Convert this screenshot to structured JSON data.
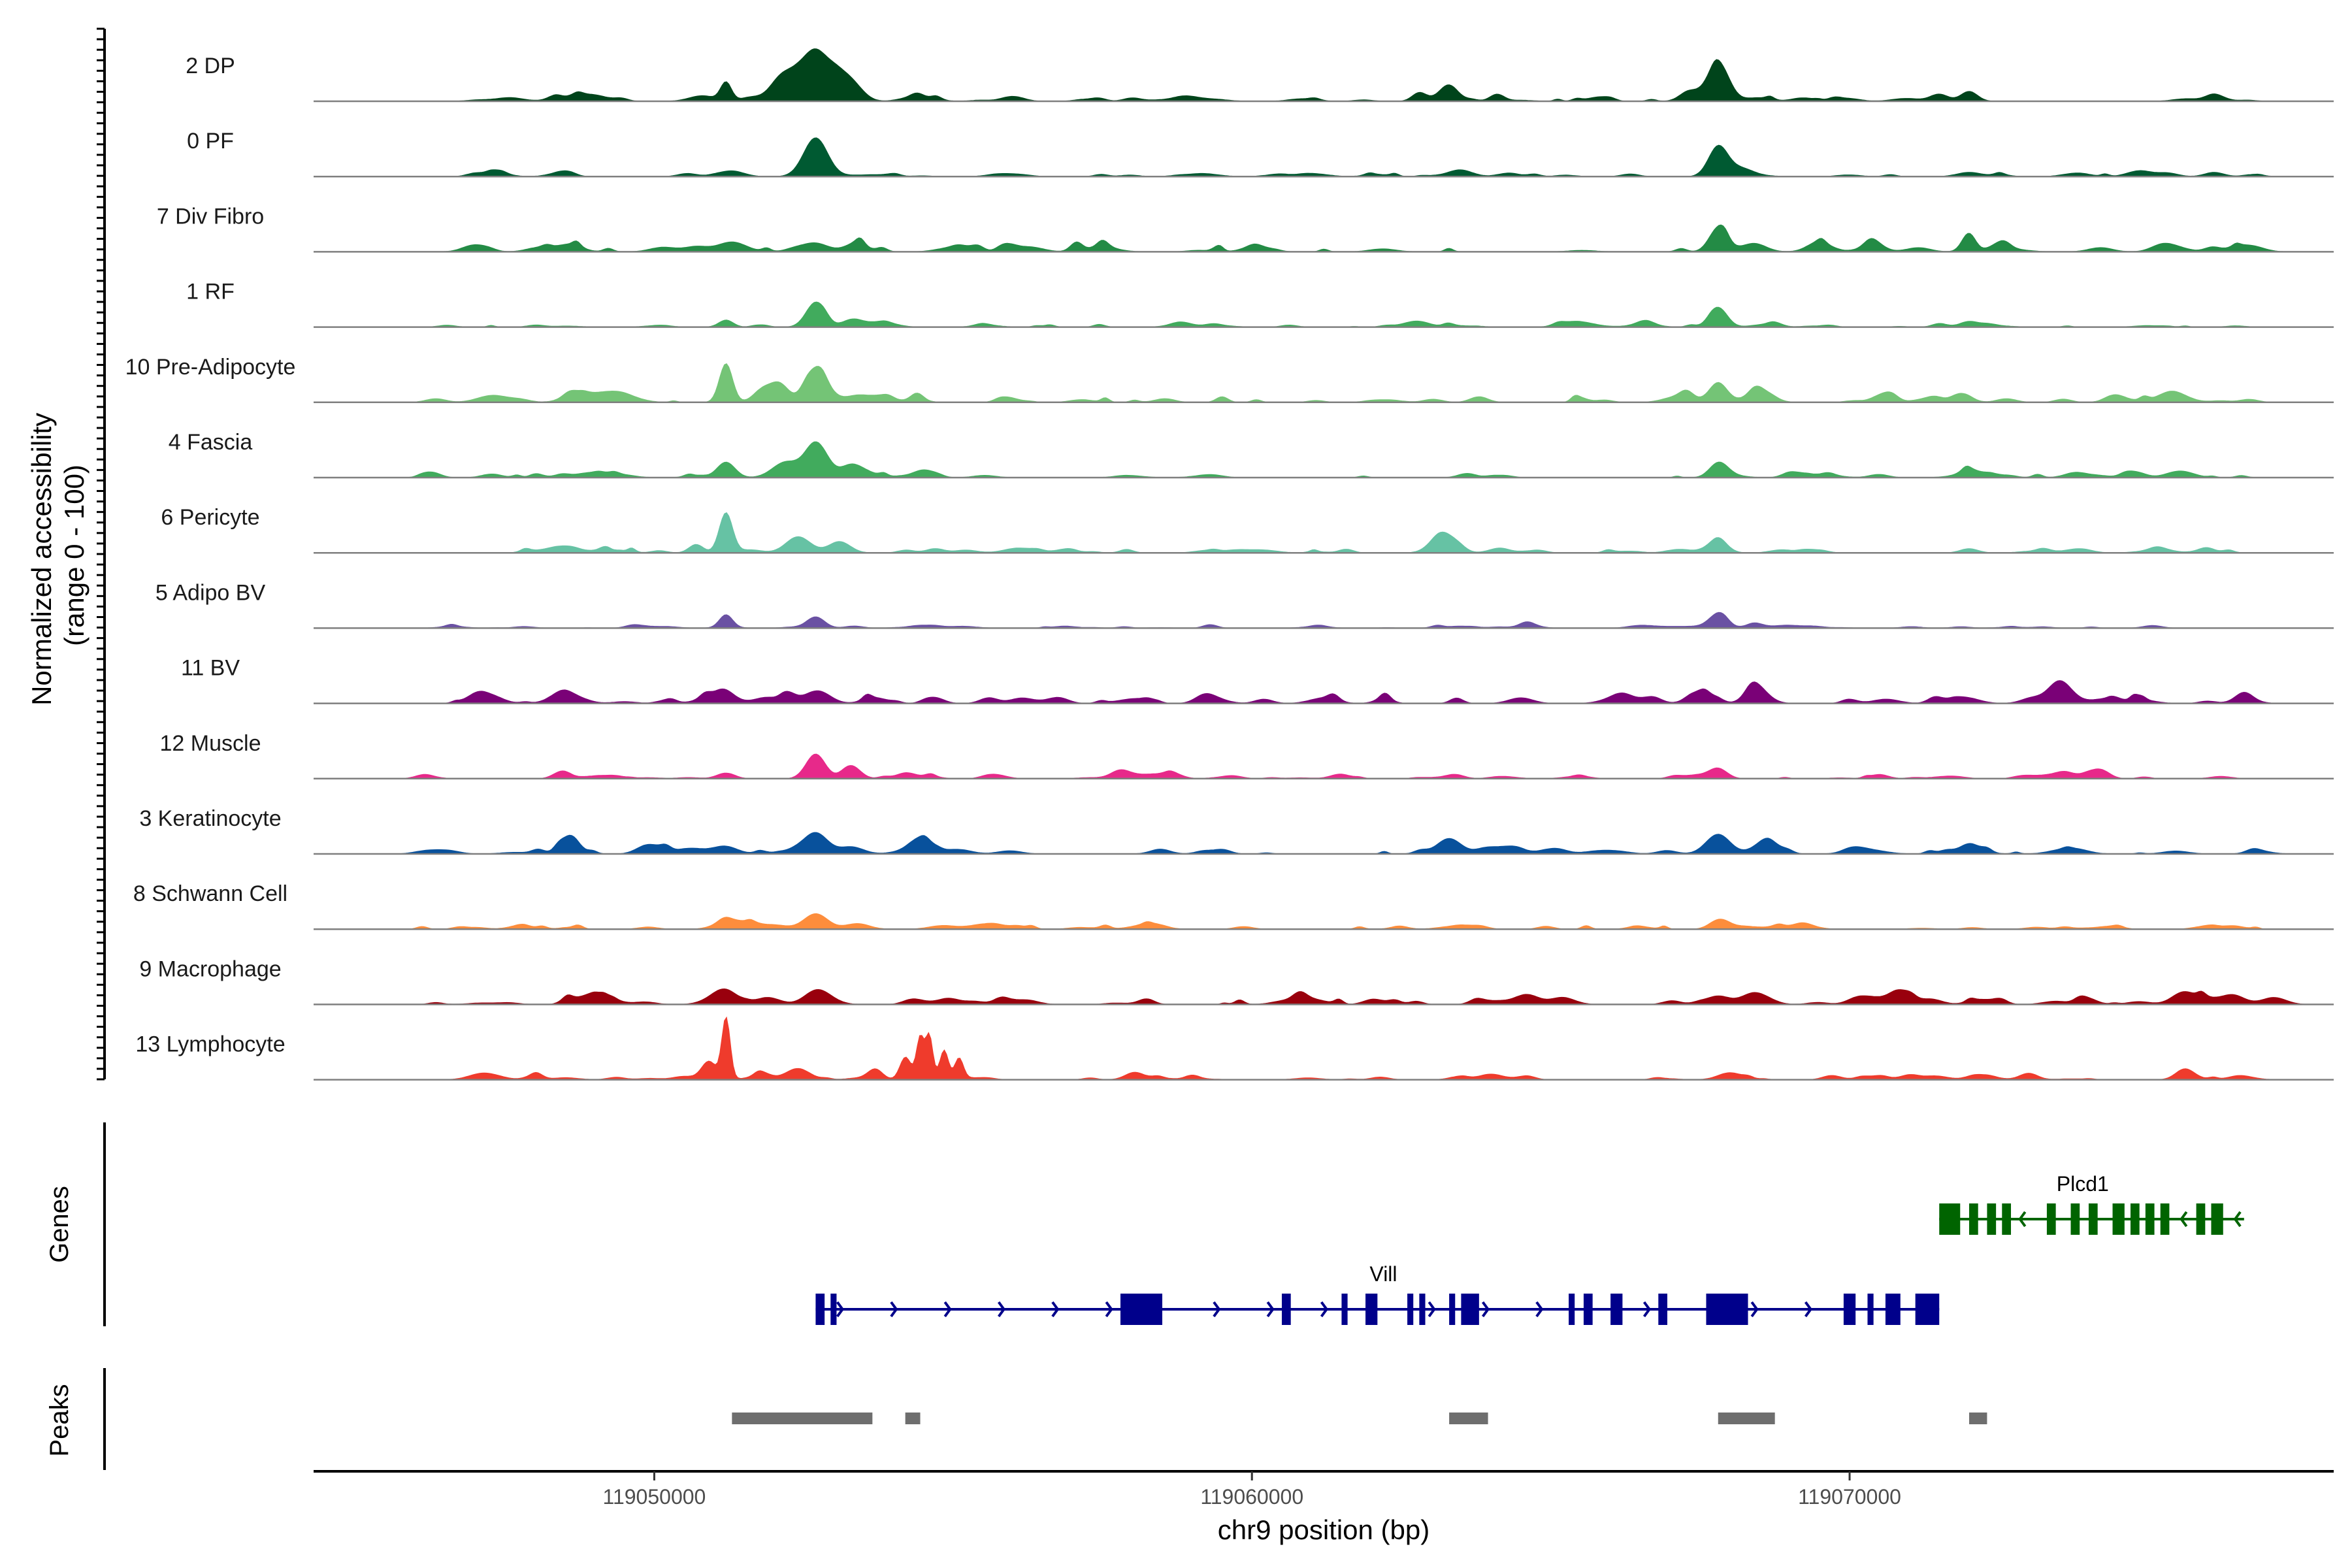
{
  "chart_data": {
    "type": "area",
    "title": "",
    "ylabel_line1": "Normalized accessibility",
    "ylabel_line2": "(range 0 - 100)",
    "xlabel": "chr9 position (bp)",
    "xlim": [
      119044300,
      119078100
    ],
    "xticks": [
      119050000,
      119060000,
      119070000
    ],
    "xtick_labels": [
      "119050000",
      "119060000",
      "119070000"
    ],
    "panels": {
      "genes": "Genes",
      "peaks": "Peaks"
    },
    "tracks": [
      {
        "label": "2 DP",
        "color": "#00441b",
        "peaks": [
          [
            119051200,
            25,
            90
          ],
          [
            119052700,
            70,
            350
          ],
          [
            119052100,
            18,
            200
          ],
          [
            119053300,
            12,
            150
          ],
          [
            119054400,
            10,
            120
          ],
          [
            119062800,
            12,
            120
          ],
          [
            119063300,
            22,
            150
          ],
          [
            119064100,
            10,
            120
          ],
          [
            119067800,
            55,
            180
          ],
          [
            119067300,
            12,
            150
          ],
          [
            119072000,
            14,
            140
          ],
          [
            119071500,
            10,
            150
          ],
          [
            119076100,
            10,
            140
          ]
        ],
        "noise": 4,
        "seed": 11
      },
      {
        "label": "0 PF",
        "color": "#005a32",
        "peaks": [
          [
            119052700,
            55,
            200
          ],
          [
            119051300,
            8,
            200
          ],
          [
            119067800,
            42,
            160
          ],
          [
            119068200,
            10,
            200
          ],
          [
            119063500,
            8,
            200
          ],
          [
            119064300,
            5,
            180
          ],
          [
            119072000,
            6,
            200
          ],
          [
            119076100,
            6,
            160
          ]
        ],
        "noise": 3,
        "seed": 23
      },
      {
        "label": "7 Div Fibro",
        "color": "#238b45",
        "peaks": [
          [
            119047000,
            10,
            200
          ],
          [
            119048600,
            10,
            200
          ],
          [
            119051200,
            8,
            200
          ],
          [
            119052700,
            12,
            200
          ],
          [
            119053400,
            8,
            150
          ],
          [
            119067800,
            32,
            150
          ],
          [
            119068400,
            12,
            200
          ],
          [
            119069500,
            8,
            200
          ],
          [
            119072000,
            25,
            110
          ],
          [
            119074200,
            6,
            200
          ],
          [
            119076500,
            6,
            200
          ]
        ],
        "noise": 6,
        "seed": 37
      },
      {
        "label": "1 RF",
        "color": "#41ab5d",
        "peaks": [
          [
            119051200,
            10,
            120
          ],
          [
            119052700,
            35,
            160
          ],
          [
            119053300,
            10,
            160
          ],
          [
            119067800,
            28,
            150
          ],
          [
            119072000,
            8,
            150
          ]
        ],
        "noise": 3,
        "seed": 41
      },
      {
        "label": "10 Pre-Adipocyte",
        "color": "#74c476",
        "peaks": [
          [
            119051200,
            55,
            110
          ],
          [
            119052700,
            42,
            180
          ],
          [
            119052100,
            25,
            150
          ],
          [
            119051800,
            16,
            150
          ],
          [
            119049200,
            14,
            320
          ],
          [
            119047300,
            10,
            250
          ],
          [
            119053800,
            8,
            150
          ],
          [
            119054400,
            10,
            100
          ],
          [
            119059500,
            8,
            100
          ],
          [
            119063800,
            8,
            150
          ],
          [
            119067800,
            28,
            150
          ],
          [
            119068500,
            12,
            150
          ],
          [
            119070500,
            8,
            150
          ],
          [
            119071900,
            12,
            150
          ],
          [
            119075400,
            14,
            250
          ],
          [
            119074400,
            8,
            150
          ]
        ],
        "noise": 5,
        "seed": 53
      },
      {
        "label": "4 Fascia",
        "color": "#41ab5d",
        "peaks": [
          [
            119051200,
            22,
            150
          ],
          [
            119052700,
            48,
            180
          ],
          [
            119052200,
            22,
            220
          ],
          [
            119053300,
            18,
            180
          ],
          [
            119054500,
            10,
            150
          ],
          [
            119067800,
            14,
            150
          ],
          [
            119072000,
            10,
            150
          ],
          [
            119063600,
            6,
            150
          ]
        ],
        "noise": 4,
        "seed": 67
      },
      {
        "label": "6 Pericyte",
        "color": "#66c2a4",
        "peaks": [
          [
            119051200,
            52,
            110
          ],
          [
            119050700,
            12,
            120
          ],
          [
            119052400,
            20,
            200
          ],
          [
            119053100,
            16,
            180
          ],
          [
            119063200,
            28,
            200
          ],
          [
            119067800,
            16,
            150
          ],
          [
            119054700,
            6,
            150
          ],
          [
            119072000,
            6,
            150
          ]
        ],
        "noise": 4,
        "seed": 71
      },
      {
        "label": "5 Adipo BV",
        "color": "#6a51a3",
        "peaks": [
          [
            119051200,
            18,
            110
          ],
          [
            119052700,
            16,
            150
          ],
          [
            119067800,
            18,
            150
          ],
          [
            119064600,
            6,
            120
          ],
          [
            119068400,
            5,
            120
          ],
          [
            119059300,
            5,
            120
          ]
        ],
        "noise": 2,
        "seed": 83
      },
      {
        "label": "11 BV",
        "color": "#7a0177",
        "peaks": [
          [
            119047000,
            8,
            200
          ],
          [
            119048700,
            8,
            200
          ],
          [
            119051200,
            10,
            150
          ],
          [
            119052700,
            14,
            200
          ],
          [
            119053700,
            8,
            200
          ],
          [
            119054700,
            8,
            150
          ],
          [
            119055600,
            8,
            150
          ],
          [
            119059200,
            8,
            150
          ],
          [
            119060200,
            6,
            150
          ],
          [
            119062200,
            6,
            150
          ],
          [
            119064500,
            8,
            200
          ],
          [
            119066200,
            6,
            150
          ],
          [
            119067500,
            10,
            200
          ],
          [
            119068400,
            12,
            150
          ],
          [
            119073500,
            24,
            180
          ],
          [
            119076600,
            12,
            140
          ]
        ],
        "noise": 7,
        "seed": 97
      },
      {
        "label": "12 Muscle",
        "color": "#e7298a",
        "peaks": [
          [
            119048500,
            8,
            120
          ],
          [
            119051200,
            8,
            150
          ],
          [
            119052700,
            35,
            160
          ],
          [
            119053300,
            18,
            150
          ],
          [
            119054200,
            6,
            150
          ],
          [
            119057800,
            6,
            150
          ],
          [
            119058700,
            6,
            150
          ],
          [
            119063400,
            6,
            150
          ],
          [
            119067800,
            14,
            150
          ],
          [
            119070500,
            6,
            150
          ],
          [
            119073600,
            8,
            150
          ],
          [
            119074200,
            12,
            150
          ]
        ],
        "noise": 3,
        "seed": 101
      },
      {
        "label": "3 Keratinocyte",
        "color": "#08519c",
        "peaks": [
          [
            119048600,
            24,
            140
          ],
          [
            119051200,
            10,
            200
          ],
          [
            119052700,
            30,
            200
          ],
          [
            119053300,
            10,
            200
          ],
          [
            119054400,
            14,
            150
          ],
          [
            119063300,
            22,
            200
          ],
          [
            119064300,
            8,
            200
          ],
          [
            119067800,
            28,
            200
          ],
          [
            119068600,
            18,
            200
          ],
          [
            119070100,
            8,
            200
          ],
          [
            119072000,
            10,
            150
          ]
        ],
        "noise": 5,
        "seed": 113
      },
      {
        "label": "8 Schwann Cell",
        "color": "#fd8d3c",
        "peaks": [
          [
            119051200,
            16,
            140
          ],
          [
            119052700,
            20,
            200
          ],
          [
            119053400,
            8,
            200
          ],
          [
            119067800,
            12,
            150
          ],
          [
            119063500,
            5,
            150
          ],
          [
            119069200,
            5,
            150
          ]
        ],
        "noise": 4,
        "seed": 127
      },
      {
        "label": "9 Macrophage",
        "color": "#99000d",
        "peaks": [
          [
            119049000,
            8,
            200
          ],
          [
            119051200,
            18,
            200
          ],
          [
            119052700,
            16,
            200
          ],
          [
            119051900,
            10,
            200
          ],
          [
            119054300,
            6,
            150
          ],
          [
            119064600,
            14,
            200
          ],
          [
            119065200,
            10,
            200
          ],
          [
            119067800,
            12,
            200
          ],
          [
            119068400,
            10,
            200
          ],
          [
            119070800,
            10,
            150
          ],
          [
            119074000,
            8,
            150
          ],
          [
            119075600,
            18,
            200
          ],
          [
            119076400,
            14,
            200
          ],
          [
            119077100,
            10,
            200
          ]
        ],
        "noise": 6,
        "seed": 131
      },
      {
        "label": "13 Lymphocyte",
        "color": "#ef3b2c",
        "peaks": [
          [
            119051200,
            85,
            70
          ],
          [
            119050900,
            22,
            120
          ],
          [
            119054600,
            60,
            60
          ],
          [
            119054450,
            55,
            60
          ],
          [
            119054850,
            40,
            70
          ],
          [
            119055100,
            28,
            70
          ],
          [
            119054200,
            30,
            90
          ],
          [
            119053700,
            14,
            120
          ],
          [
            119052400,
            16,
            200
          ],
          [
            119051800,
            10,
            150
          ],
          [
            119048000,
            6,
            150
          ],
          [
            119058000,
            8,
            150
          ],
          [
            119059000,
            6,
            120
          ],
          [
            119064000,
            8,
            200
          ],
          [
            119068000,
            10,
            200
          ],
          [
            119069700,
            6,
            150
          ],
          [
            119072100,
            6,
            150
          ],
          [
            119075600,
            14,
            150
          ],
          [
            119073000,
            6,
            150
          ],
          [
            119071000,
            6,
            150
          ]
        ],
        "noise": 3,
        "seed": 149
      }
    ],
    "genes": [
      {
        "name": "Vill",
        "color": "#00008b",
        "strand": "+",
        "start": 119052700,
        "end": 119071500,
        "row": 2,
        "exons": [
          [
            119052700,
            119052850
          ],
          [
            119052950,
            119053050
          ],
          [
            119057800,
            119058500
          ],
          [
            119060500,
            119060650
          ],
          [
            119061500,
            119061600
          ],
          [
            119061900,
            119062100
          ],
          [
            119062600,
            119062700
          ],
          [
            119062800,
            119062900
          ],
          [
            119063300,
            119063400
          ],
          [
            119063500,
            119063800
          ],
          [
            119065300,
            119065400
          ],
          [
            119065550,
            119065700
          ],
          [
            119066000,
            119066200
          ],
          [
            119066800,
            119066950
          ],
          [
            119067600,
            119068300
          ],
          [
            119069900,
            119070100
          ],
          [
            119070300,
            119070400
          ],
          [
            119070600,
            119070850
          ],
          [
            119071100,
            119071500
          ]
        ]
      },
      {
        "name": "Plcd1",
        "color": "#006400",
        "strand": "-",
        "start": 119071500,
        "end": 119076600,
        "row": 1,
        "exons": [
          [
            119071500,
            119071850
          ],
          [
            119072000,
            119072150
          ],
          [
            119072300,
            119072450
          ],
          [
            119072550,
            119072700
          ],
          [
            119073300,
            119073450
          ],
          [
            119073700,
            119073850
          ],
          [
            119074000,
            119074150
          ],
          [
            119074400,
            119074600
          ],
          [
            119074700,
            119074850
          ],
          [
            119074950,
            119075100
          ],
          [
            119075200,
            119075350
          ],
          [
            119075800,
            119075950
          ],
          [
            119076050,
            119076250
          ]
        ]
      }
    ],
    "peaks": [
      [
        119051300,
        119053650
      ],
      [
        119054200,
        119054450
      ],
      [
        119063300,
        119063950
      ],
      [
        119067800,
        119068750
      ],
      [
        119072000,
        119072300
      ]
    ]
  }
}
